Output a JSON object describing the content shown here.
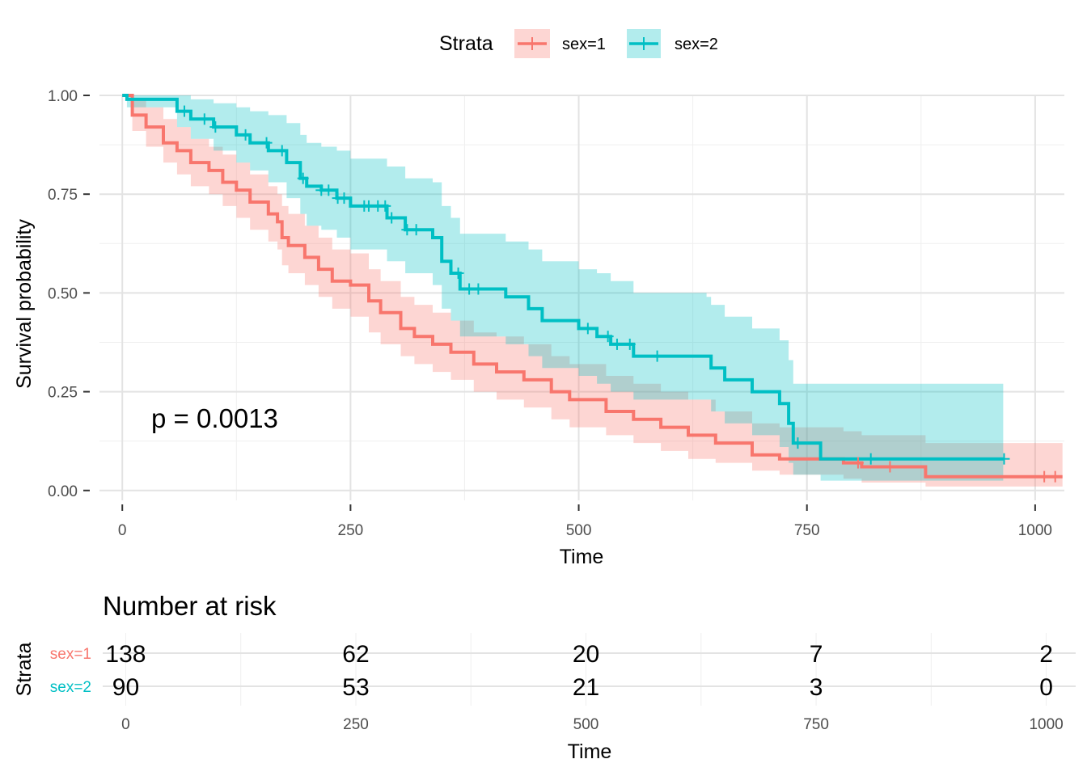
{
  "legend": {
    "title": "Strata",
    "items": [
      {
        "label": "sex=1",
        "color": "#F8766D"
      },
      {
        "label": "sex=2",
        "color": "#00BFC4"
      }
    ]
  },
  "chart_data": [
    {
      "type": "line",
      "subtype": "kaplan-meier",
      "title": "",
      "xlabel": "Time",
      "ylabel": "Survival probability",
      "xlim": [
        -25,
        1032
      ],
      "ylim": [
        -0.025,
        1.0
      ],
      "x_ticks": [
        0,
        250,
        500,
        750,
        1000
      ],
      "x_tick_labels": [
        "0",
        "250",
        "500",
        "750",
        "1000"
      ],
      "y_ticks": [
        0,
        0.25,
        0.5,
        0.75,
        1.0
      ],
      "y_tick_labels": [
        "0.00",
        "0.25",
        "0.50",
        "0.75",
        "1.00"
      ],
      "grid": true,
      "legend_position": "top",
      "annotation": "p = 0.0013",
      "series": [
        {
          "name": "sex=1",
          "color": "#F8766D",
          "steps": [
            [
              0,
              1.0
            ],
            [
              11,
              0.95
            ],
            [
              26,
              0.92
            ],
            [
              45,
              0.88
            ],
            [
              60,
              0.86
            ],
            [
              75,
              0.83
            ],
            [
              95,
              0.81
            ],
            [
              110,
              0.78
            ],
            [
              125,
              0.76
            ],
            [
              140,
              0.73
            ],
            [
              160,
              0.7
            ],
            [
              170,
              0.68
            ],
            [
              175,
              0.64
            ],
            [
              182,
              0.62
            ],
            [
              200,
              0.59
            ],
            [
              215,
              0.56
            ],
            [
              230,
              0.53
            ],
            [
              250,
              0.52
            ],
            [
              270,
              0.48
            ],
            [
              283,
              0.45
            ],
            [
              305,
              0.41
            ],
            [
              320,
              0.39
            ],
            [
              340,
              0.37
            ],
            [
              360,
              0.35
            ],
            [
              385,
              0.32
            ],
            [
              410,
              0.3
            ],
            [
              440,
              0.28
            ],
            [
              470,
              0.25
            ],
            [
              490,
              0.23
            ],
            [
              530,
              0.2
            ],
            [
              560,
              0.18
            ],
            [
              590,
              0.16
            ],
            [
              620,
              0.14
            ],
            [
              650,
              0.12
            ],
            [
              690,
              0.09
            ],
            [
              720,
              0.08
            ],
            [
              790,
              0.07
            ],
            [
              810,
              0.06
            ],
            [
              880,
              0.035
            ],
            [
              1030,
              0.035
            ]
          ],
          "ci_upper": [
            [
              0,
              1.0
            ],
            [
              11,
              0.99
            ],
            [
              26,
              0.97
            ],
            [
              45,
              0.94
            ],
            [
              60,
              0.92
            ],
            [
              75,
              0.89
            ],
            [
              95,
              0.87
            ],
            [
              110,
              0.85
            ],
            [
              125,
              0.83
            ],
            [
              140,
              0.8
            ],
            [
              160,
              0.77
            ],
            [
              170,
              0.75
            ],
            [
              175,
              0.72
            ],
            [
              182,
              0.7
            ],
            [
              200,
              0.67
            ],
            [
              215,
              0.64
            ],
            [
              230,
              0.61
            ],
            [
              250,
              0.6
            ],
            [
              270,
              0.56
            ],
            [
              283,
              0.53
            ],
            [
              305,
              0.49
            ],
            [
              320,
              0.47
            ],
            [
              340,
              0.45
            ],
            [
              360,
              0.43
            ],
            [
              385,
              0.4
            ],
            [
              410,
              0.39
            ],
            [
              440,
              0.37
            ],
            [
              470,
              0.34
            ],
            [
              490,
              0.32
            ],
            [
              530,
              0.29
            ],
            [
              560,
              0.27
            ],
            [
              590,
              0.25
            ],
            [
              620,
              0.23
            ],
            [
              650,
              0.2
            ],
            [
              690,
              0.17
            ],
            [
              720,
              0.16
            ],
            [
              790,
              0.15
            ],
            [
              810,
              0.14
            ],
            [
              880,
              0.12
            ],
            [
              1030,
              0.12
            ]
          ],
          "ci_lower": [
            [
              0,
              1.0
            ],
            [
              11,
              0.91
            ],
            [
              26,
              0.87
            ],
            [
              45,
              0.83
            ],
            [
              60,
              0.8
            ],
            [
              75,
              0.77
            ],
            [
              95,
              0.75
            ],
            [
              110,
              0.72
            ],
            [
              125,
              0.69
            ],
            [
              140,
              0.66
            ],
            [
              160,
              0.63
            ],
            [
              170,
              0.61
            ],
            [
              175,
              0.57
            ],
            [
              182,
              0.55
            ],
            [
              200,
              0.52
            ],
            [
              215,
              0.49
            ],
            [
              230,
              0.46
            ],
            [
              250,
              0.44
            ],
            [
              270,
              0.4
            ],
            [
              283,
              0.37
            ],
            [
              305,
              0.34
            ],
            [
              320,
              0.32
            ],
            [
              340,
              0.3
            ],
            [
              360,
              0.28
            ],
            [
              385,
              0.25
            ],
            [
              410,
              0.23
            ],
            [
              440,
              0.21
            ],
            [
              470,
              0.18
            ],
            [
              490,
              0.16
            ],
            [
              530,
              0.14
            ],
            [
              560,
              0.12
            ],
            [
              590,
              0.1
            ],
            [
              620,
              0.08
            ],
            [
              650,
              0.07
            ],
            [
              690,
              0.05
            ],
            [
              720,
              0.04
            ],
            [
              790,
              0.03
            ],
            [
              810,
              0.02
            ],
            [
              880,
              0.01
            ],
            [
              1030,
              0.01
            ]
          ],
          "censor_times": [
            806,
            841,
            1010,
            1022
          ]
        },
        {
          "name": "sex=2",
          "color": "#00BFC4",
          "steps": [
            [
              0,
              1.0
            ],
            [
              5,
              0.99
            ],
            [
              60,
              0.96
            ],
            [
              75,
              0.94
            ],
            [
              100,
              0.92
            ],
            [
              125,
              0.9
            ],
            [
              140,
              0.88
            ],
            [
              160,
              0.86
            ],
            [
              180,
              0.83
            ],
            [
              195,
              0.79
            ],
            [
              202,
              0.77
            ],
            [
              218,
              0.76
            ],
            [
              235,
              0.74
            ],
            [
              250,
              0.72
            ],
            [
              290,
              0.69
            ],
            [
              310,
              0.66
            ],
            [
              340,
              0.64
            ],
            [
              350,
              0.58
            ],
            [
              360,
              0.55
            ],
            [
              370,
              0.51
            ],
            [
              420,
              0.49
            ],
            [
              445,
              0.46
            ],
            [
              460,
              0.43
            ],
            [
              500,
              0.41
            ],
            [
              520,
              0.39
            ],
            [
              535,
              0.37
            ],
            [
              560,
              0.34
            ],
            [
              640,
              0.34
            ],
            [
              645,
              0.31
            ],
            [
              660,
              0.28
            ],
            [
              690,
              0.25
            ],
            [
              720,
              0.22
            ],
            [
              730,
              0.17
            ],
            [
              735,
              0.12
            ],
            [
              765,
              0.08
            ],
            [
              965,
              0.08
            ]
          ],
          "ci_upper": [
            [
              0,
              1.0
            ],
            [
              5,
              1.0
            ],
            [
              60,
              1.0
            ],
            [
              75,
              0.99
            ],
            [
              100,
              0.98
            ],
            [
              125,
              0.97
            ],
            [
              140,
              0.96
            ],
            [
              160,
              0.95
            ],
            [
              180,
              0.93
            ],
            [
              195,
              0.9
            ],
            [
              202,
              0.88
            ],
            [
              218,
              0.87
            ],
            [
              235,
              0.86
            ],
            [
              250,
              0.84
            ],
            [
              290,
              0.82
            ],
            [
              310,
              0.79
            ],
            [
              340,
              0.78
            ],
            [
              350,
              0.72
            ],
            [
              360,
              0.69
            ],
            [
              370,
              0.65
            ],
            [
              420,
              0.63
            ],
            [
              445,
              0.61
            ],
            [
              460,
              0.58
            ],
            [
              500,
              0.56
            ],
            [
              520,
              0.55
            ],
            [
              535,
              0.53
            ],
            [
              560,
              0.5
            ],
            [
              640,
              0.49
            ],
            [
              645,
              0.47
            ],
            [
              660,
              0.44
            ],
            [
              690,
              0.41
            ],
            [
              720,
              0.38
            ],
            [
              730,
              0.33
            ],
            [
              735,
              0.27
            ],
            [
              765,
              0.27
            ],
            [
              965,
              0.27
            ]
          ],
          "ci_lower": [
            [
              0,
              1.0
            ],
            [
              5,
              0.97
            ],
            [
              60,
              0.92
            ],
            [
              75,
              0.89
            ],
            [
              100,
              0.86
            ],
            [
              125,
              0.83
            ],
            [
              140,
              0.81
            ],
            [
              160,
              0.78
            ],
            [
              180,
              0.74
            ],
            [
              195,
              0.7
            ],
            [
              202,
              0.67
            ],
            [
              218,
              0.66
            ],
            [
              235,
              0.64
            ],
            [
              250,
              0.61
            ],
            [
              290,
              0.58
            ],
            [
              310,
              0.55
            ],
            [
              340,
              0.52
            ],
            [
              350,
              0.46
            ],
            [
              360,
              0.43
            ],
            [
              370,
              0.39
            ],
            [
              420,
              0.37
            ],
            [
              445,
              0.34
            ],
            [
              460,
              0.31
            ],
            [
              500,
              0.29
            ],
            [
              520,
              0.27
            ],
            [
              535,
              0.25
            ],
            [
              560,
              0.23
            ],
            [
              640,
              0.23
            ],
            [
              645,
              0.2
            ],
            [
              660,
              0.17
            ],
            [
              690,
              0.14
            ],
            [
              720,
              0.11
            ],
            [
              730,
              0.07
            ],
            [
              735,
              0.04
            ],
            [
              765,
              0.025
            ],
            [
              965,
              0.025
            ]
          ],
          "censor_times": [
            68,
            90,
            102,
            135,
            158,
            175,
            198,
            218,
            226,
            236,
            243,
            265,
            270,
            280,
            288,
            295,
            312,
            322,
            368,
            380,
            390,
            510,
            532,
            542,
            556,
            586,
            740,
            820,
            966
          ]
        }
      ]
    },
    {
      "type": "table",
      "title": "Number at risk",
      "ylabel": "Strata",
      "xlabel": "Time",
      "xlim": [
        -25,
        1032
      ],
      "x_ticks": [
        0,
        250,
        500,
        750,
        1000
      ],
      "x_tick_labels": [
        "0",
        "250",
        "500",
        "750",
        "1000"
      ],
      "rows": [
        {
          "name": "sex=1",
          "color": "#F8766D",
          "values": [
            "138",
            "62",
            "20",
            "7",
            "2"
          ]
        },
        {
          "name": "sex=2",
          "color": "#00BFC4",
          "values": [
            "90",
            "53",
            "21",
            "3",
            "0"
          ]
        }
      ]
    }
  ]
}
